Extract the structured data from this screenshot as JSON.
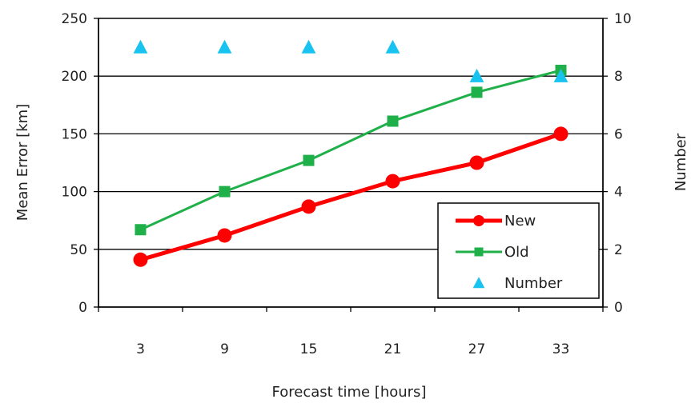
{
  "chart_data": {
    "type": "line",
    "categories": [
      "3",
      "9",
      "15",
      "21",
      "27",
      "33"
    ],
    "xlabel": "Forecast time [hours]",
    "ylabel": "Mean Error [km]",
    "y2label": "Number",
    "ylim": [
      0,
      250
    ],
    "yticks": [
      "0",
      "50",
      "100",
      "150",
      "200",
      "250"
    ],
    "y2lim": [
      0,
      10
    ],
    "y2ticks": [
      "0",
      "2",
      "4",
      "6",
      "8",
      "10"
    ],
    "grid": "horizontal",
    "legend": "bottom-right",
    "series": [
      {
        "name": "New",
        "axis": "left",
        "color": "#ff0000",
        "marker": "circle",
        "values": [
          41,
          62,
          87,
          109,
          125,
          150
        ]
      },
      {
        "name": "Old",
        "axis": "left",
        "color": "#1fb04a",
        "marker": "square",
        "values": [
          67,
          100,
          127,
          161,
          186,
          205
        ]
      },
      {
        "name": "Number",
        "axis": "right",
        "color": "#19c3f0",
        "marker": "triangle",
        "values": [
          9,
          9,
          9,
          9,
          8,
          8
        ]
      }
    ]
  }
}
